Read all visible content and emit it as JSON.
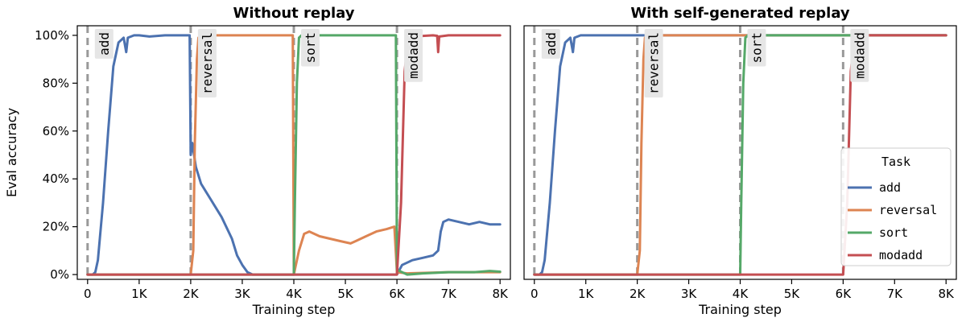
{
  "colors": {
    "add": "#4C72B0",
    "reversal": "#DD8452",
    "sort": "#55A868",
    "modadd": "#C44E52",
    "boundary": "#999999"
  },
  "chart_data": [
    {
      "type": "line",
      "title": "Without replay",
      "xlabel": "Training step",
      "ylabel": "Eval accuracy",
      "xlim": [
        -200,
        8200
      ],
      "ylim": [
        -0.02,
        1.04
      ],
      "xticks": [
        0,
        1000,
        2000,
        3000,
        4000,
        5000,
        6000,
        7000,
        8000
      ],
      "xtick_labels": [
        "0",
        "1K",
        "2K",
        "3K",
        "4K",
        "5K",
        "6K",
        "7K",
        "8K"
      ],
      "yticks": [
        0,
        0.2,
        0.4,
        0.6,
        0.8,
        1.0
      ],
      "ytick_labels": [
        "0%",
        "20%",
        "40%",
        "60%",
        "80%",
        "100%"
      ],
      "task_boundaries": [
        {
          "x": 0,
          "label": "add"
        },
        {
          "x": 2000,
          "label": "reversal"
        },
        {
          "x": 4000,
          "label": "sort"
        },
        {
          "x": 6000,
          "label": "modadd"
        }
      ],
      "series": [
        {
          "name": "add",
          "points": [
            [
              0,
              0
            ],
            [
              100,
              0
            ],
            [
              150,
              0.01
            ],
            [
              200,
              0.06
            ],
            [
              300,
              0.3
            ],
            [
              400,
              0.6
            ],
            [
              500,
              0.87
            ],
            [
              600,
              0.97
            ],
            [
              700,
              0.99
            ],
            [
              750,
              0.93
            ],
            [
              780,
              0.99
            ],
            [
              900,
              1.0
            ],
            [
              1000,
              1.0
            ],
            [
              1200,
              0.995
            ],
            [
              1500,
              1.0
            ],
            [
              1800,
              1.0
            ],
            [
              1980,
              1.0
            ],
            [
              2000,
              0.5
            ],
            [
              2030,
              0.55
            ],
            [
              2100,
              0.45
            ],
            [
              2200,
              0.38
            ],
            [
              2400,
              0.31
            ],
            [
              2600,
              0.24
            ],
            [
              2800,
              0.15
            ],
            [
              2900,
              0.08
            ],
            [
              3000,
              0.04
            ],
            [
              3100,
              0.01
            ],
            [
              3200,
              0.0
            ],
            [
              4000,
              0.0
            ],
            [
              6000,
              0.0
            ],
            [
              6050,
              0.02
            ],
            [
              6100,
              0.04
            ],
            [
              6300,
              0.06
            ],
            [
              6500,
              0.07
            ],
            [
              6700,
              0.08
            ],
            [
              6800,
              0.1
            ],
            [
              6850,
              0.18
            ],
            [
              6900,
              0.22
            ],
            [
              7000,
              0.23
            ],
            [
              7200,
              0.22
            ],
            [
              7400,
              0.21
            ],
            [
              7600,
              0.22
            ],
            [
              7800,
              0.21
            ],
            [
              8000,
              0.21
            ]
          ]
        },
        {
          "name": "reversal",
          "points": [
            [
              0,
              0
            ],
            [
              2000,
              0
            ],
            [
              2050,
              0.1
            ],
            [
              2080,
              0.55
            ],
            [
              2120,
              0.9
            ],
            [
              2150,
              0.99
            ],
            [
              2200,
              1.0
            ],
            [
              3000,
              1.0
            ],
            [
              3980,
              1.0
            ],
            [
              4000,
              0.0
            ],
            [
              4100,
              0.1
            ],
            [
              4200,
              0.17
            ],
            [
              4300,
              0.18
            ],
            [
              4500,
              0.16
            ],
            [
              4700,
              0.15
            ],
            [
              4900,
              0.14
            ],
            [
              5100,
              0.13
            ],
            [
              5200,
              0.14
            ],
            [
              5400,
              0.16
            ],
            [
              5600,
              0.18
            ],
            [
              5800,
              0.19
            ],
            [
              5950,
              0.2
            ],
            [
              6000,
              0.01
            ],
            [
              6200,
              0.005
            ],
            [
              7000,
              0.01
            ],
            [
              8000,
              0.01
            ]
          ]
        },
        {
          "name": "sort",
          "points": [
            [
              0,
              0
            ],
            [
              4000,
              0
            ],
            [
              4020,
              0.3
            ],
            [
              4060,
              0.8
            ],
            [
              4100,
              0.99
            ],
            [
              4150,
              1.0
            ],
            [
              5000,
              1.0
            ],
            [
              5980,
              1.0
            ],
            [
              6000,
              0.02
            ],
            [
              6200,
              0.0
            ],
            [
              6500,
              0.005
            ],
            [
              7000,
              0.01
            ],
            [
              7500,
              0.01
            ],
            [
              7800,
              0.015
            ],
            [
              8000,
              0.012
            ]
          ]
        },
        {
          "name": "modadd",
          "points": [
            [
              0,
              0
            ],
            [
              6000,
              0
            ],
            [
              6080,
              0.3
            ],
            [
              6150,
              0.85
            ],
            [
              6220,
              0.99
            ],
            [
              6300,
              0.995
            ],
            [
              6700,
              1.0
            ],
            [
              6780,
              0.998
            ],
            [
              6800,
              0.93
            ],
            [
              6820,
              0.995
            ],
            [
              7000,
              1.0
            ],
            [
              8000,
              1.0
            ]
          ]
        }
      ]
    },
    {
      "type": "line",
      "title": "With self-generated replay",
      "xlabel": "Training step",
      "ylabel": "",
      "xlim": [
        -200,
        8200
      ],
      "ylim": [
        -0.02,
        1.04
      ],
      "xticks": [
        0,
        1000,
        2000,
        3000,
        4000,
        5000,
        6000,
        7000,
        8000
      ],
      "xtick_labels": [
        "0",
        "1K",
        "2K",
        "3K",
        "4K",
        "5K",
        "6K",
        "7K",
        "8K"
      ],
      "task_boundaries": [
        {
          "x": 0,
          "label": "add"
        },
        {
          "x": 2000,
          "label": "reversal"
        },
        {
          "x": 4000,
          "label": "sort"
        },
        {
          "x": 6000,
          "label": "modadd"
        }
      ],
      "legend": {
        "title": "Task",
        "placement": "right",
        "entries": [
          "add",
          "reversal",
          "sort",
          "modadd"
        ]
      },
      "series": [
        {
          "name": "add",
          "points": [
            [
              0,
              0
            ],
            [
              100,
              0
            ],
            [
              150,
              0.01
            ],
            [
              200,
              0.06
            ],
            [
              300,
              0.3
            ],
            [
              400,
              0.6
            ],
            [
              500,
              0.87
            ],
            [
              600,
              0.97
            ],
            [
              700,
              0.99
            ],
            [
              750,
              0.93
            ],
            [
              780,
              0.99
            ],
            [
              900,
              1.0
            ],
            [
              2000,
              1.0
            ],
            [
              4000,
              1.0
            ],
            [
              6000,
              1.0
            ],
            [
              8000,
              1.0
            ]
          ]
        },
        {
          "name": "reversal",
          "points": [
            [
              0,
              0
            ],
            [
              2000,
              0
            ],
            [
              2050,
              0.1
            ],
            [
              2080,
              0.55
            ],
            [
              2120,
              0.9
            ],
            [
              2150,
              0.99
            ],
            [
              2200,
              1.0
            ],
            [
              4000,
              1.0
            ],
            [
              6000,
              1.0
            ],
            [
              8000,
              1.0
            ]
          ]
        },
        {
          "name": "sort",
          "points": [
            [
              0,
              0
            ],
            [
              4000,
              0
            ],
            [
              4020,
              0.3
            ],
            [
              4060,
              0.8
            ],
            [
              4100,
              0.99
            ],
            [
              4150,
              1.0
            ],
            [
              6000,
              1.0
            ],
            [
              8000,
              1.0
            ]
          ]
        },
        {
          "name": "modadd",
          "points": [
            [
              0,
              0
            ],
            [
              6000,
              0
            ],
            [
              6080,
              0.3
            ],
            [
              6150,
              0.85
            ],
            [
              6220,
              0.99
            ],
            [
              6300,
              1.0
            ],
            [
              8000,
              1.0
            ]
          ]
        }
      ]
    }
  ]
}
